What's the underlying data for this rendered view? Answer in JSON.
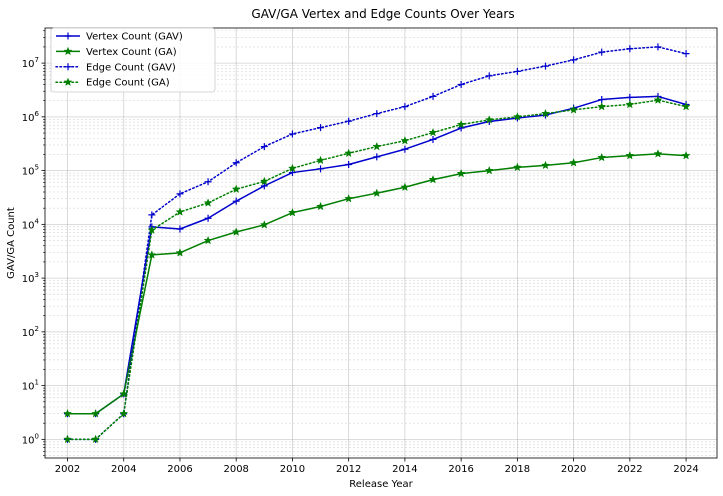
{
  "chart_data": {
    "type": "line",
    "title": "GAV/GA Vertex and Edge Counts Over Years",
    "xlabel": "Release Year",
    "ylabel": "GAV/GA Count",
    "yscale": "log",
    "xlim": [
      2001.2,
      2025.1
    ],
    "ylim": [
      0.45,
      45000000
    ],
    "x_ticks": [
      2002,
      2004,
      2006,
      2008,
      2010,
      2012,
      2014,
      2016,
      2018,
      2020,
      2022,
      2024
    ],
    "y_ticks": [
      {
        "value": 1,
        "base": "10",
        "exp": "0"
      },
      {
        "value": 10,
        "base": "10",
        "exp": "1"
      },
      {
        "value": 100,
        "base": "10",
        "exp": "2"
      },
      {
        "value": 1000,
        "base": "10",
        "exp": "3"
      },
      {
        "value": 10000,
        "base": "10",
        "exp": "4"
      },
      {
        "value": 100000,
        "base": "10",
        "exp": "5"
      },
      {
        "value": 1000000,
        "base": "10",
        "exp": "6"
      },
      {
        "value": 10000000,
        "base": "10",
        "exp": "7"
      }
    ],
    "grid": true,
    "legend_position": "top-left",
    "x": [
      2002,
      2003,
      2004,
      2005,
      2006,
      2007,
      2008,
      2009,
      2010,
      2011,
      2012,
      2013,
      2014,
      2015,
      2016,
      2017,
      2018,
      2019,
      2020,
      2021,
      2022,
      2023,
      2024
    ],
    "series": [
      {
        "name": "Vertex Count (GAV)",
        "color": "#0000cc",
        "style": "solid",
        "marker": "plus",
        "values": [
          3,
          3,
          7,
          9000,
          8200,
          13000,
          27000,
          52000,
          92000,
          108000,
          130000,
          180000,
          250000,
          380000,
          620000,
          820000,
          950000,
          1080000,
          1450000,
          2100000,
          2300000,
          2400000,
          1700000
        ]
      },
      {
        "name": "Vertex Count (GA)",
        "color": "#007f00",
        "style": "solid",
        "marker": "star",
        "values": [
          3,
          3,
          7,
          2700,
          2950,
          5000,
          7200,
          9800,
          16500,
          21500,
          30000,
          38000,
          49000,
          68000,
          88000,
          100000,
          115000,
          125000,
          140000,
          175000,
          190000,
          205000,
          190000
        ]
      },
      {
        "name": "Edge Count (GAV)",
        "color": "#0000cc",
        "style": "dotted",
        "marker": "plus",
        "values": [
          1,
          1,
          3,
          15000,
          37000,
          62000,
          140000,
          280000,
          480000,
          630000,
          830000,
          1150000,
          1550000,
          2400000,
          4000000,
          5800000,
          7000000,
          8800000,
          11500000,
          16000000,
          18500000,
          20000000,
          15000000
        ]
      },
      {
        "name": "Edge Count (GA)",
        "color": "#007f00",
        "style": "dotted",
        "marker": "star",
        "values": [
          1,
          1,
          3,
          7800,
          17000,
          25000,
          45000,
          63000,
          110000,
          155000,
          210000,
          280000,
          360000,
          510000,
          720000,
          880000,
          1000000,
          1150000,
          1350000,
          1550000,
          1700000,
          2050000,
          1550000
        ]
      }
    ]
  }
}
